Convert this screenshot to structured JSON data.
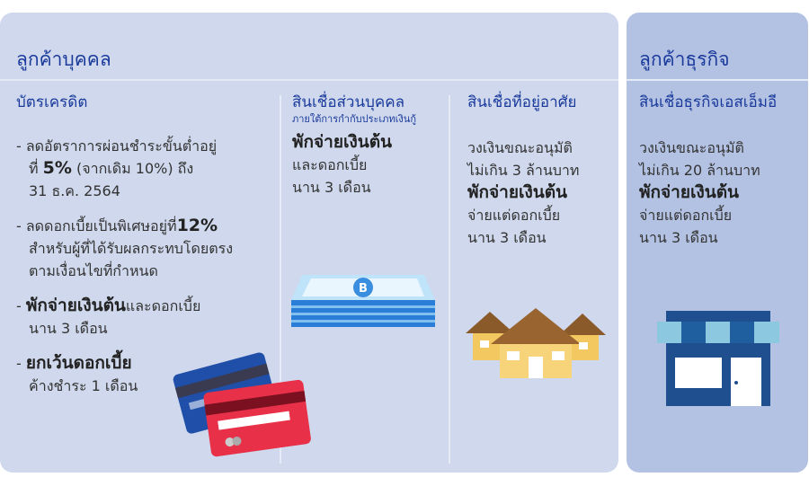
{
  "personal": {
    "title": "ลูกค้าบุคคล",
    "credit_card": {
      "title": "บัตรเครดิต",
      "item1": {
        "a": "- ลดอัตราการผ่อนชำระขั้นต่ำอยู่",
        "b": "ที่ ",
        "c": "5%",
        "d": " (จากเดิม 10%) ถึง",
        "e": "31 ธ.ค. 2564"
      },
      "item2": {
        "a": "- ลดดอกเบี้ยเป็นพิเศษอยู่ที่",
        "b": "12%",
        "c": "สำหรับผู้ที่ได้รับผลกระทบโดยตรง",
        "d": "ตามเงื่อนไขที่กำหนด"
      },
      "item3": {
        "a": "- ",
        "b": "พักจ่ายเงินต้น",
        "c": "และดอกเบี้ย",
        "d": "นาน 3 เดือน"
      },
      "item4": {
        "a": "- ",
        "b": "ยกเว้นดอกเบี้ย",
        "c": "ค้างชำระ 1 เดือน"
      }
    },
    "personal_loan": {
      "title": "สินเชื่อส่วนบุคคล",
      "subtitle": "ภายใต้การกำกับประเภทเงินกู้",
      "bold": "พักจ่ายเงินต้น",
      "l1": "และดอกเบี้ย",
      "l2": "นาน 3 เดือน"
    },
    "home_loan": {
      "title": "สินเชื่อที่อยู่อาศัย",
      "l1": "วงเงินขณะอนุมัติ",
      "l2": "ไม่เกิน 3 ล้านบาท",
      "bold": "พักจ่ายเงินต้น",
      "l3": "จ่ายแต่ดอกเบี้ย",
      "l4": "นาน 3 เดือน"
    }
  },
  "business": {
    "title": "ลูกค้าธุรกิจ",
    "sme_loan": {
      "title": "สินเชื่อธุรกิจเอสเอ็มอี",
      "l1": "วงเงินขณะอนุมัติ",
      "l2": "ไม่เกิน 20 ล้านบาท",
      "bold": "พักจ่ายเงินต้น",
      "l3": "จ่ายแต่ดอกเบี้ย",
      "l4": "นาน 3 เดือน"
    }
  },
  "colors": {
    "title_blue": "#1a3a9c",
    "left_panel": "#cfd8ec",
    "right_panel": "#b3c2e3"
  },
  "icons": [
    "credit-cards-icon",
    "money-stack-icon",
    "houses-icon",
    "shop-icon"
  ]
}
